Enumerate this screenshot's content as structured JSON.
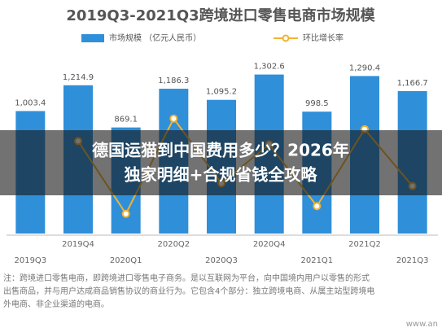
{
  "chart_data": {
    "type": "bar",
    "title": "2019Q3-2021Q3跨境进口零售电商市场规模",
    "categories": [
      "2019Q3",
      "2019Q4",
      "2020Q1",
      "2020Q2",
      "2020Q3",
      "2020Q4",
      "2021Q1",
      "2021Q2",
      "2021Q3"
    ],
    "series": [
      {
        "name": "市场规模 （亿元人民币）",
        "type": "bar",
        "color": "#2f8fd9",
        "values": [
          1003.4,
          1214.9,
          869.1,
          1186.3,
          1095.2,
          1302.6,
          998.5,
          1290.4,
          1166.7
        ],
        "value_labels": [
          "1,003.4",
          "1,214.9",
          "869.1",
          "1,186.3",
          "1,095.2",
          "1,302.6",
          "998.5",
          "1,290.4",
          "1,166.7"
        ]
      },
      {
        "name": "环比增长率",
        "type": "line",
        "axis": "y2",
        "color": "#f2b233",
        "values": [
          null,
          21.1,
          -28.5,
          36.5,
          -7.7,
          18.9,
          -23.3,
          29.2,
          -9.6
        ]
      }
    ],
    "ylim": [
      0,
      1500
    ],
    "y2lim": [
      -42,
      83
    ]
  },
  "banner": [
    "德国运猫到中国费用多少？2026年",
    "独家明细+合规省钱全攻略"
  ],
  "note": [
    "注：跨境进口零售电商，即跨境进口零售电子商务。是以互联网为平台，向中国境内用户以零售的形式",
    "出售商品，并与用户达成商品销售协议的商业行为。它包含4个部分：独立跨境电商、从属主站型跨境电",
    "外电商、非企业渠道的电商。"
  ],
  "watermark": "www.an"
}
